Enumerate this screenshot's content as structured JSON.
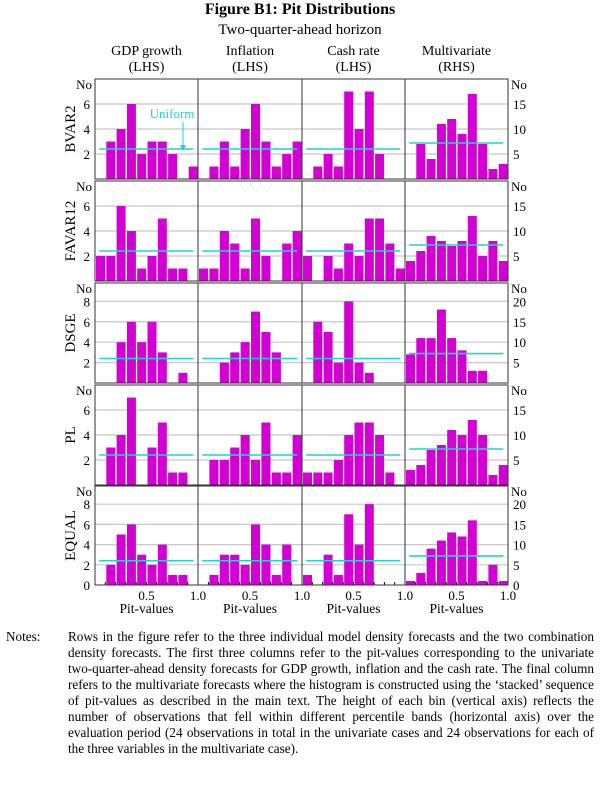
{
  "title": "Figure B1: Pit Distributions",
  "subtitle": "Two-quarter-ahead horizon",
  "notes_label": "Notes:",
  "notes_text": "Rows in the figure refer to the three individual model density forecasts and the two combination density forecasts. The first three columns refer to the pit-values corresponding to the univariate two-quarter-ahead density forecasts for GDP growth, inflation and the cash rate. The final column refers to the multivariate forecasts where the histogram is constructed using the ‘stacked’ sequence of pit-values as described in the main text. The height of each bin (vertical axis) reflects the number of observations that fell within different percentile bands (horizontal axis) over the evaluation period (24 observations in total in the univariate cases and 24 observations for each of the three variables in the multivariate case).",
  "colors": {
    "bars": "#d200d2",
    "uniform": "#1fd3d3",
    "grid": "#c8c8c8"
  },
  "chart_data": {
    "type": "bar",
    "title": "Figure B1: Pit Distributions",
    "subtitle": "Two-quarter-ahead horizon",
    "xlabel": "Pit-values",
    "x_ticks": [
      "0.5",
      "1.0"
    ],
    "bins": [
      0.0,
      0.1,
      0.2,
      0.3,
      0.4,
      0.5,
      0.6,
      0.7,
      0.8,
      0.9
    ],
    "bin_width": 0.1,
    "xlim": [
      0,
      1
    ],
    "y_unit_label": "No",
    "annotation": "Uniform",
    "grid": true,
    "columns": [
      {
        "name": "GDP growth",
        "axis": "(LHS)"
      },
      {
        "name": "Inflation",
        "axis": "(LHS)"
      },
      {
        "name": "Cash rate",
        "axis": "(LHS)"
      },
      {
        "name": "Multivariate",
        "axis": "(RHS)"
      }
    ],
    "rows": [
      {
        "name": "BVAR2",
        "ylim_lhs": [
          0,
          8
        ],
        "ylim_rhs": [
          0,
          20
        ],
        "lhs_ticks": [
          "2",
          "4",
          "6"
        ],
        "rhs_ticks": [
          "5",
          "10",
          "15"
        ],
        "values": [
          [
            0,
            3,
            4,
            6,
            2,
            3,
            3,
            2,
            0,
            1
          ],
          [
            0,
            1,
            3,
            1,
            4,
            6,
            3,
            1,
            2,
            3
          ],
          [
            0,
            1,
            2,
            1,
            7,
            4,
            7,
            2,
            0,
            0
          ],
          [
            0,
            7,
            4,
            11,
            12,
            9,
            17,
            7,
            2,
            3
          ]
        ]
      },
      {
        "name": "FAVAR12",
        "ylim_lhs": [
          0,
          8
        ],
        "ylim_rhs": [
          0,
          20
        ],
        "lhs_ticks": [
          "2",
          "4",
          "6"
        ],
        "rhs_ticks": [
          "5",
          "10",
          "15"
        ],
        "values": [
          [
            2,
            2,
            6,
            4,
            1,
            2,
            5,
            1,
            1,
            0
          ],
          [
            1,
            1,
            4,
            3,
            1,
            5,
            2,
            0,
            3,
            4
          ],
          [
            2,
            0,
            2,
            1,
            3,
            2,
            5,
            5,
            3,
            1
          ],
          [
            4,
            6,
            9,
            8,
            7,
            8,
            13,
            5,
            8,
            4
          ]
        ]
      },
      {
        "name": "DSGE",
        "ylim_lhs": [
          0,
          9.8
        ],
        "ylim_rhs": [
          0,
          24.5
        ],
        "lhs_ticks": [
          "2",
          "4",
          "6",
          "8"
        ],
        "rhs_ticks": [
          "5",
          "10",
          "15",
          "20"
        ],
        "values": [
          [
            0,
            0,
            4,
            6,
            4,
            6,
            3,
            0,
            1,
            0
          ],
          [
            0,
            0,
            2,
            3,
            4,
            7,
            5,
            3,
            0,
            0
          ],
          [
            0,
            6,
            5,
            2,
            8,
            2,
            1,
            0,
            0,
            0
          ],
          [
            7,
            11,
            11,
            18,
            11,
            8,
            3,
            3,
            0,
            0
          ]
        ]
      },
      {
        "name": "PL",
        "ylim_lhs": [
          0,
          8
        ],
        "ylim_rhs": [
          0,
          20
        ],
        "lhs_ticks": [
          "2",
          "4",
          "6"
        ],
        "rhs_ticks": [
          "5",
          "10",
          "15"
        ],
        "values": [
          [
            0,
            3,
            4,
            7,
            0,
            3,
            5,
            1,
            1,
            0
          ],
          [
            0,
            2,
            2,
            3,
            4,
            2,
            5,
            1,
            1,
            4
          ],
          [
            1,
            1,
            1,
            2,
            4,
            5,
            5,
            4,
            1,
            0
          ],
          [
            3,
            4,
            7,
            8,
            11,
            10,
            13,
            10,
            2,
            4
          ]
        ]
      },
      {
        "name": "EQUAL",
        "ylim_lhs": [
          0,
          9.8
        ],
        "ylim_rhs": [
          0,
          24.5
        ],
        "lhs_ticks": [
          "0",
          "2",
          "4",
          "6",
          "8"
        ],
        "rhs_ticks": [
          "0",
          "5",
          "10",
          "15",
          "20"
        ],
        "values": [
          [
            0,
            2,
            5,
            6,
            3,
            2,
            4,
            1,
            1,
            0
          ],
          [
            0,
            1,
            3,
            3,
            2,
            6,
            4,
            1,
            4,
            0
          ],
          [
            1,
            0,
            3,
            1,
            7,
            4,
            8,
            0,
            0,
            0
          ],
          [
            1,
            3,
            9,
            11,
            13,
            12,
            16,
            1,
            5,
            1
          ]
        ]
      }
    ],
    "uniform_univariate": 2.4,
    "uniform_multivariate": 7.2
  }
}
